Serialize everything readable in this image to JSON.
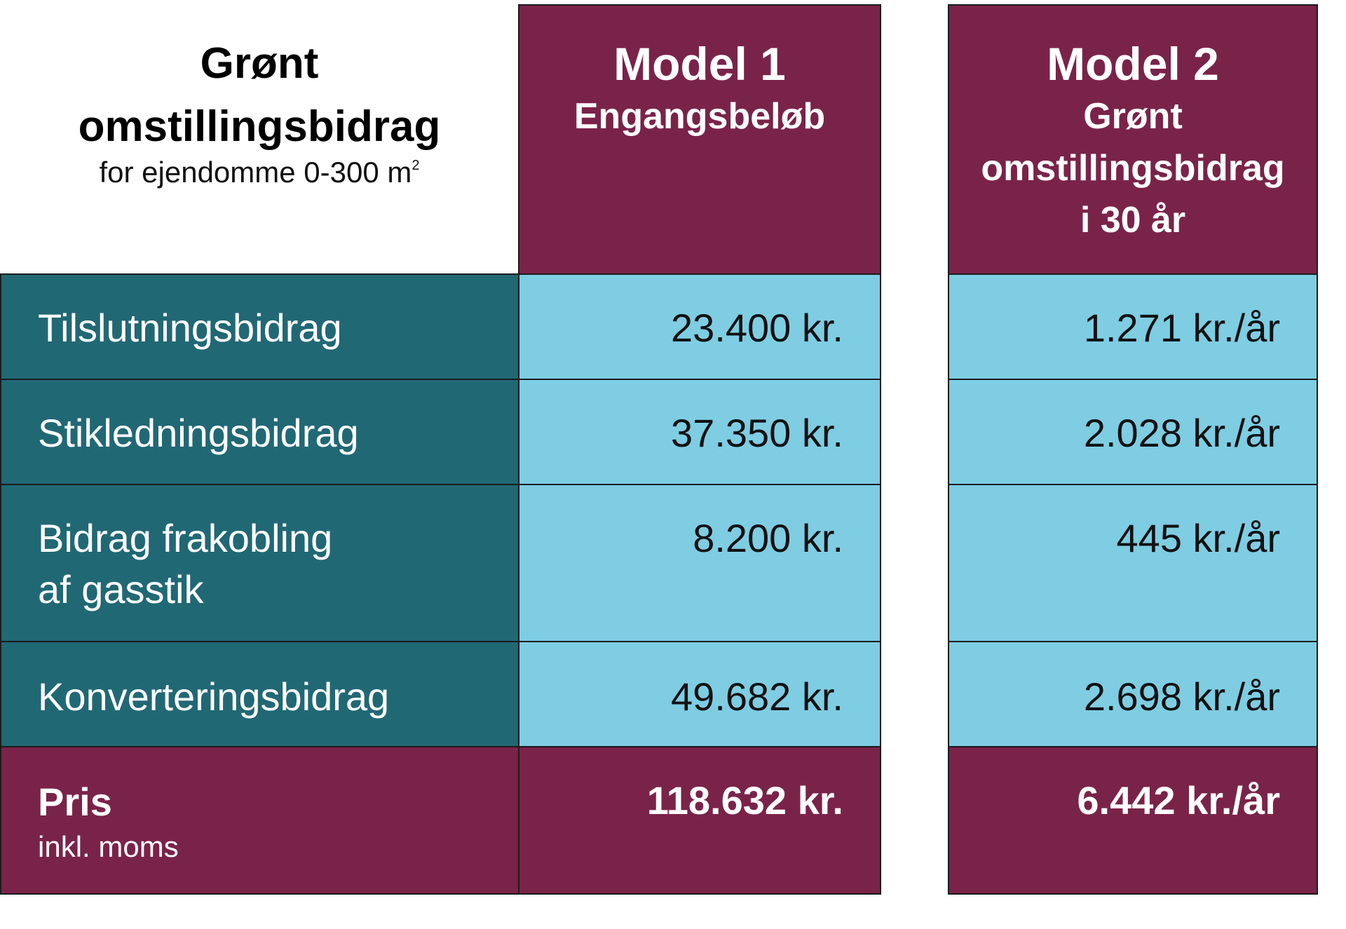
{
  "title": {
    "line1": "Grønt",
    "line2": "omstillingsbidrag",
    "subtitle": "for ejendomme 0-300 m",
    "subtitle_sup": "2"
  },
  "columns": [
    {
      "name": "Model 1",
      "subtitle_lines": [
        "Engangsbeløb"
      ]
    },
    {
      "name": "Model 2",
      "subtitle_lines": [
        "Grønt",
        "omstillingsbidrag",
        "i 30 år"
      ]
    }
  ],
  "rows": [
    {
      "label_lines": [
        "Tilslutningsbidrag"
      ],
      "model1": "23.400 kr.",
      "model2": "1.271 kr./år"
    },
    {
      "label_lines": [
        "Stikledningsbidrag"
      ],
      "model1": "37.350 kr.",
      "model2": "2.028 kr./år"
    },
    {
      "label_lines": [
        "Bidrag frakobling",
        "af gasstik"
      ],
      "model1": "8.200 kr.",
      "model2": "445 kr./år"
    },
    {
      "label_lines": [
        "Konverteringsbidrag"
      ],
      "model1": "49.682 kr.",
      "model2": "2.698 kr./år"
    }
  ],
  "total": {
    "label": "Pris",
    "sublabel": "inkl. moms",
    "model1": "118.632 kr.",
    "model2": "6.442 kr./år"
  },
  "colors": {
    "plum": "#7a2349",
    "teal": "#216875",
    "sky": "#7ecde3"
  }
}
